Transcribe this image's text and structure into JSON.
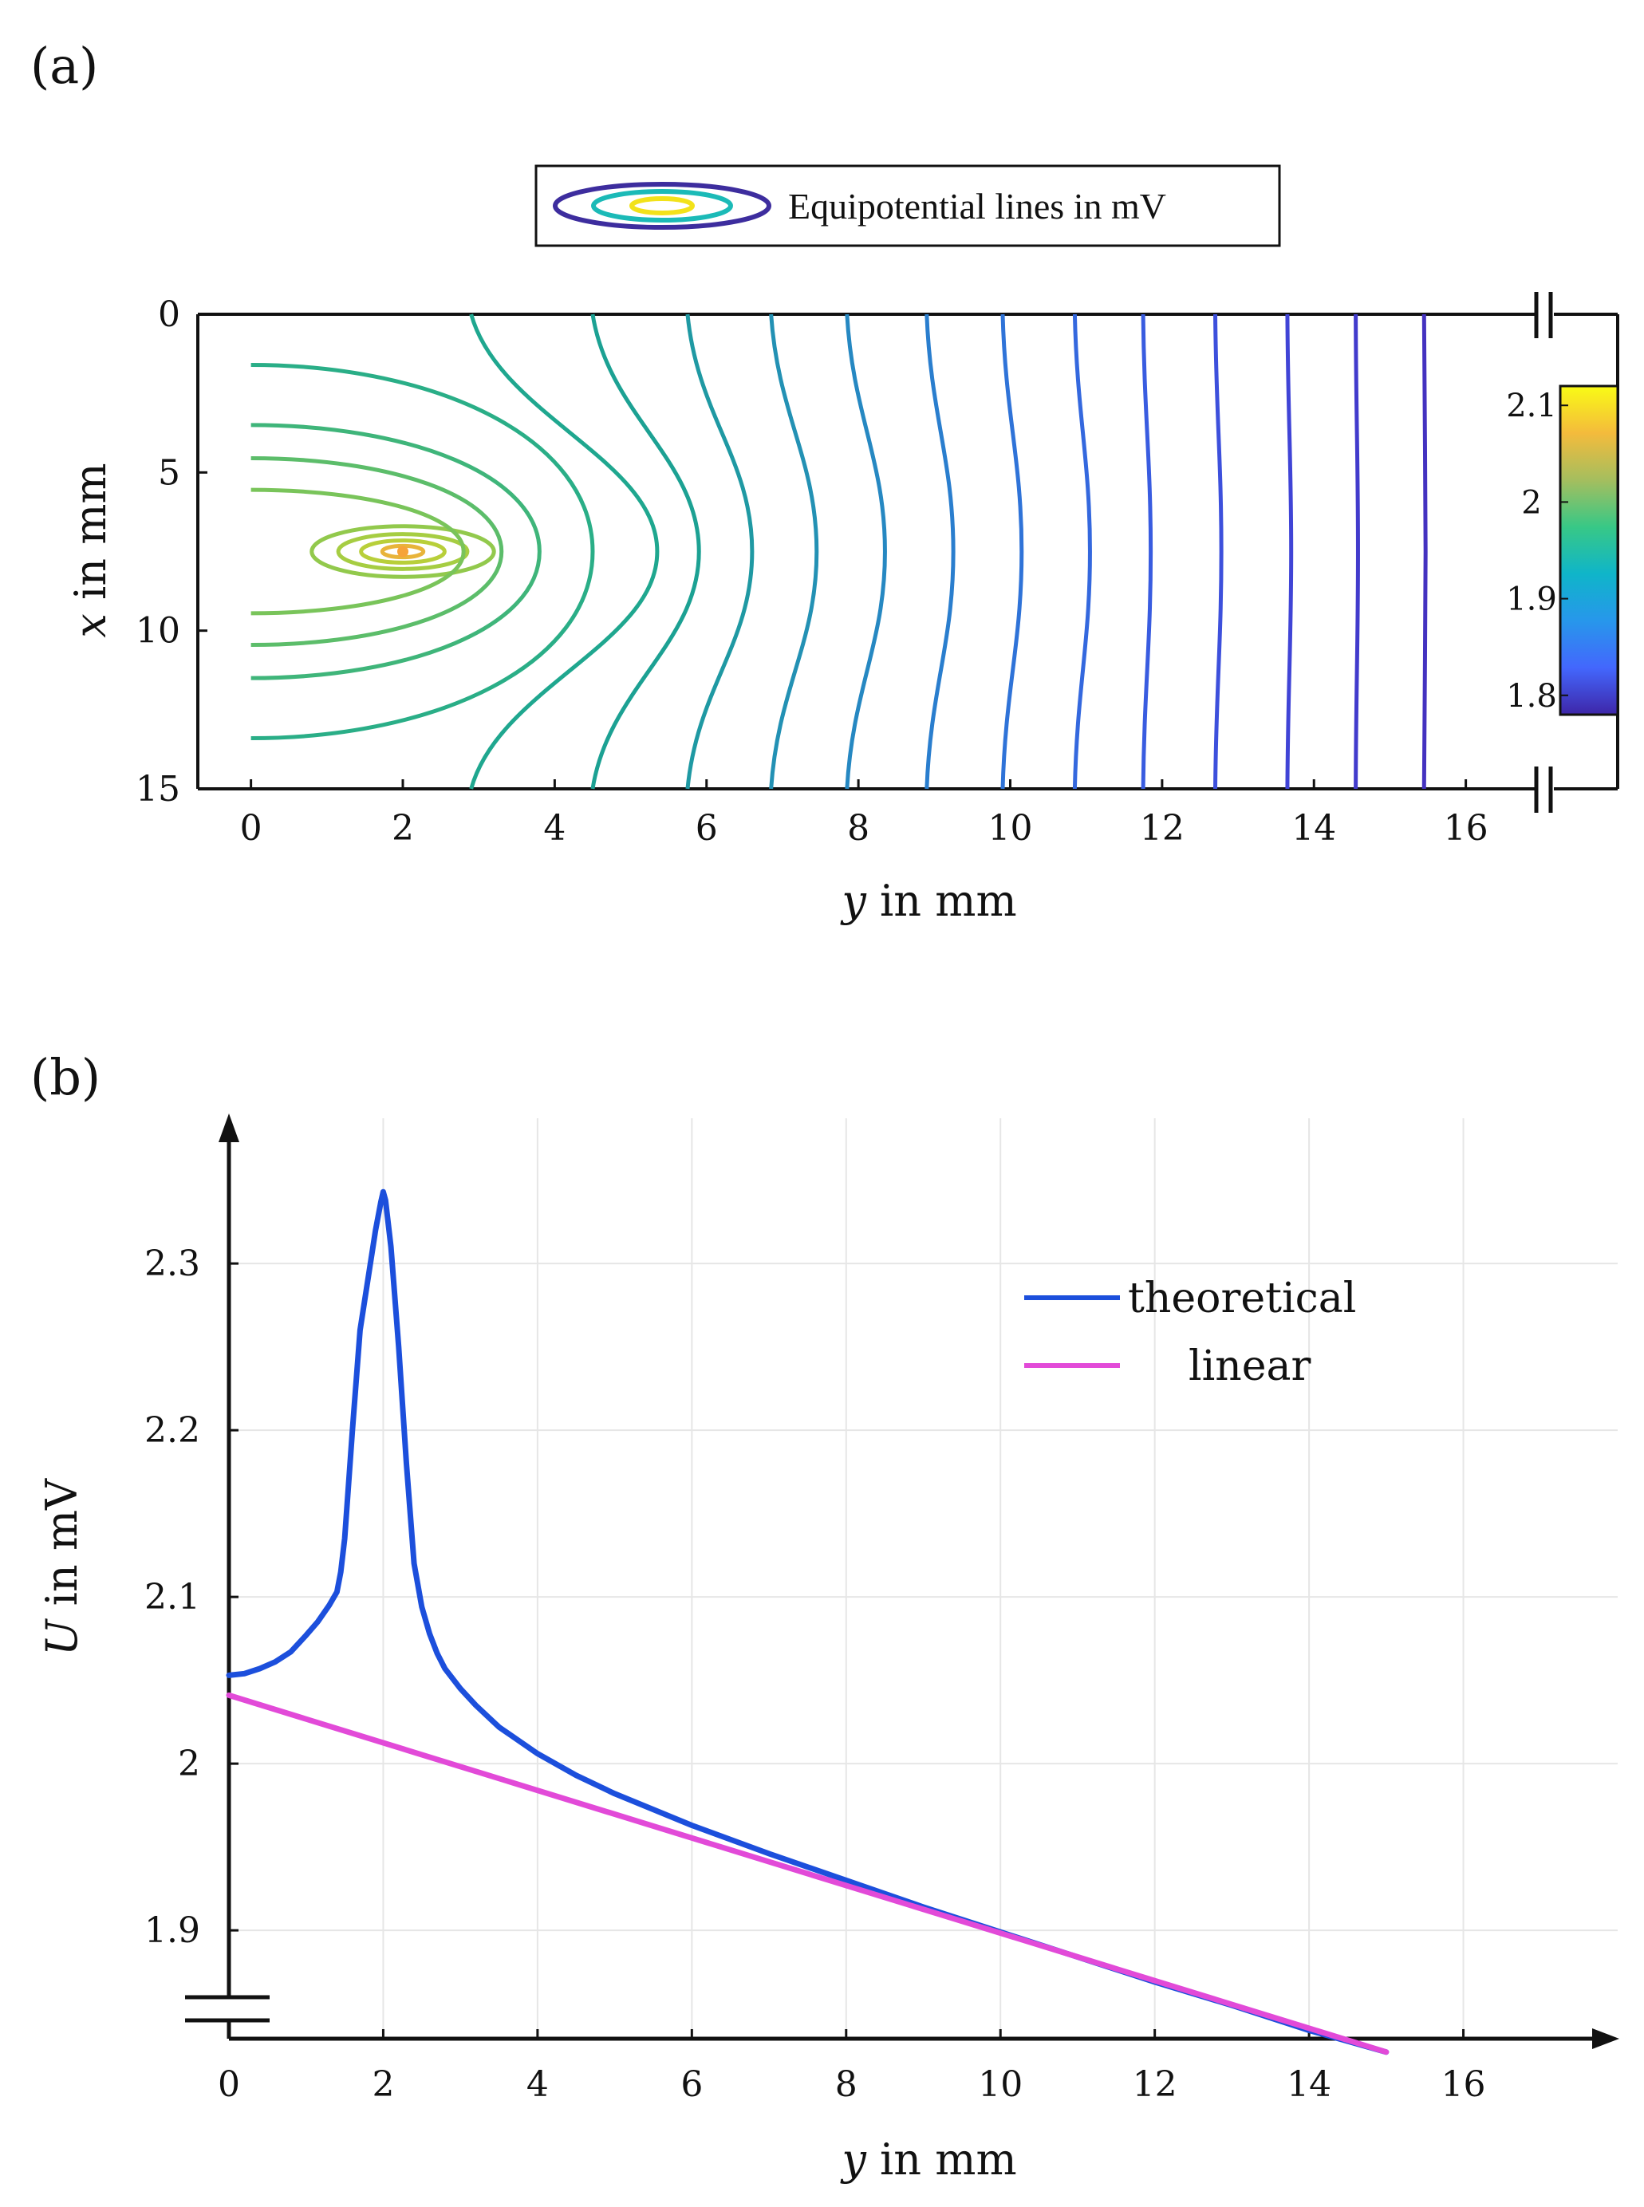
{
  "chart_data": [
    {
      "panel_label": "(a)",
      "type": "contour",
      "legend": "Equipotential lines in mV",
      "xlabel_var": "y",
      "xlabel_rest": " in mm",
      "ylabel_var": "x",
      "ylabel_rest": " in mm",
      "xlim": [
        -0.7,
        18.0
      ],
      "ylim": [
        0,
        15
      ],
      "x_break": 16.7,
      "x_ticks": [
        "0",
        "2",
        "4",
        "6",
        "8",
        "10",
        "12",
        "14",
        "16"
      ],
      "y_ticks": [
        "0",
        "5",
        "10",
        "15"
      ],
      "source": {
        "y": 2.0,
        "x": 7.5
      },
      "ellipse_levels": [
        {
          "a": 0.27,
          "b": 0.18,
          "color": "#e8b43a"
        },
        {
          "a": 0.55,
          "b": 0.35,
          "color": "#b8cf3a"
        },
        {
          "a": 0.85,
          "b": 0.55,
          "color": "#a6cd42"
        },
        {
          "a": 1.2,
          "b": 0.8,
          "color": "#92c94c"
        }
      ],
      "open_levels": [
        {
          "tip_y": 2.8,
          "half_height": 1.95,
          "color": "#79c45a"
        },
        {
          "tip_y": 3.3,
          "half_height": 2.95,
          "color": "#5cbd6a"
        },
        {
          "tip_y": 3.8,
          "half_height": 4.0,
          "color": "#3fb57a"
        },
        {
          "tip_y": 4.5,
          "half_height": 5.9,
          "color": "#2aae87"
        }
      ],
      "crossing_levels": [
        {
          "y_edge": 2.9,
          "y_mid": 5.35,
          "color": "#1fa78f"
        },
        {
          "y_edge": 4.5,
          "y_mid": 5.9,
          "color": "#1ca193"
        },
        {
          "y_edge": 5.75,
          "y_mid": 6.6,
          "color": "#1f99a3"
        },
        {
          "y_edge": 6.85,
          "y_mid": 7.45,
          "color": "#2391b4"
        },
        {
          "y_edge": 7.85,
          "y_mid": 8.35,
          "color": "#2688c2"
        },
        {
          "y_edge": 8.9,
          "y_mid": 9.25,
          "color": "#2a7ece"
        },
        {
          "y_edge": 9.9,
          "y_mid": 10.15,
          "color": "#2f73d8"
        },
        {
          "y_edge": 10.85,
          "y_mid": 11.05,
          "color": "#3468de"
        },
        {
          "y_edge": 11.75,
          "y_mid": 11.85,
          "color": "#395ce0"
        },
        {
          "y_edge": 12.7,
          "y_mid": 12.78,
          "color": "#3d50dc"
        },
        {
          "y_edge": 13.65,
          "y_mid": 13.7,
          "color": "#4044d6"
        },
        {
          "y_edge": 14.55,
          "y_mid": 14.58,
          "color": "#423bcc"
        },
        {
          "y_edge": 15.45,
          "y_mid": 15.47,
          "color": "#4432c0"
        }
      ],
      "colorbar": {
        "range": [
          1.78,
          2.12
        ],
        "ticks": [
          {
            "value": 2.1,
            "label": "2.1"
          },
          {
            "value": 2.0,
            "label": "2"
          },
          {
            "value": 1.9,
            "label": "1.9"
          },
          {
            "value": 1.8,
            "label": "1.8"
          }
        ],
        "colormap": [
          "#3e26a8",
          "#4367fd",
          "#2797eb",
          "#0fb5c9",
          "#38c886",
          "#a5be5e",
          "#f4bb3c",
          "#f9fb15"
        ]
      }
    },
    {
      "panel_label": "(b)",
      "type": "line",
      "xlabel_var": "y",
      "xlabel_rest": " in mm",
      "ylabel_var": "U",
      "ylabel_rest": " in mV",
      "xlim": [
        0,
        18
      ],
      "ylim": [
        1.835,
        2.39
      ],
      "y_break": 1.85,
      "x_ticks": [
        "0",
        "2",
        "4",
        "6",
        "8",
        "10",
        "12",
        "14",
        "16"
      ],
      "y_ticks": [
        "1.9",
        "2",
        "2.1",
        "2.2",
        "2.3"
      ],
      "series": [
        {
          "name": "theoretical",
          "color": "#1c4fdc",
          "x": [
            0,
            0.2,
            0.4,
            0.6,
            0.8,
            1.0,
            1.15,
            1.3,
            1.4,
            1.45,
            1.5,
            1.6,
            1.7,
            1.8,
            1.9,
            1.97,
            2.0,
            2.03,
            2.1,
            2.2,
            2.3,
            2.4,
            2.5,
            2.6,
            2.7,
            2.8,
            3.0,
            3.2,
            3.5,
            4.0,
            4.5,
            5.0,
            6.0,
            7.0,
            8.0,
            9.0,
            10.0,
            11.0,
            12.0,
            13.0,
            14.0,
            15.0
          ],
          "y": [
            2.053,
            2.054,
            2.057,
            2.061,
            2.067,
            2.077,
            2.085,
            2.095,
            2.103,
            2.115,
            2.135,
            2.2,
            2.26,
            2.29,
            2.32,
            2.337,
            2.343,
            2.338,
            2.31,
            2.25,
            2.18,
            2.12,
            2.094,
            2.078,
            2.066,
            2.057,
            2.045,
            2.035,
            2.022,
            2.006,
            1.993,
            1.982,
            1.963,
            1.946,
            1.93,
            1.914,
            1.899,
            1.884,
            1.869,
            1.855,
            1.84,
            1.827
          ]
        },
        {
          "name": "linear",
          "color": "#e24ad8",
          "x": [
            0,
            15
          ],
          "y": [
            2.041,
            1.827
          ]
        }
      ]
    }
  ]
}
